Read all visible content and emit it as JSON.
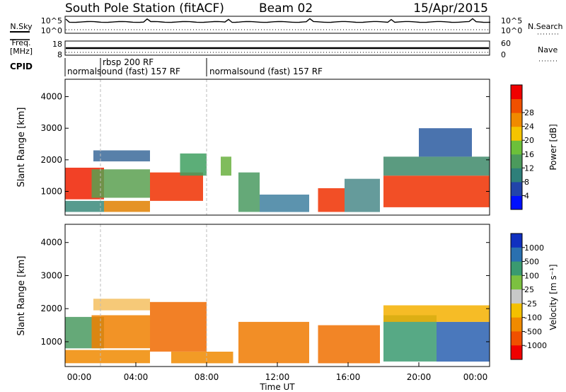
{
  "header": {
    "title": "South Pole Station (fitACF)",
    "beam": "Beam 02",
    "date": "15/Apr/2015"
  },
  "left_labels": {
    "nsky": "N.Sky",
    "freq_line1": "Freq.",
    "freq_line2": "[MHz]",
    "cpid": "CPID"
  },
  "right_labels": {
    "nsearch": "N.Search",
    "nave": "Nave"
  },
  "noise_panel": {
    "ytick_top": "10^5",
    "ytick_bottom": "10^0",
    "rtick_top": "10^5",
    "rtick_bottom": "10^0"
  },
  "freq_panel": {
    "ytick_top": "18",
    "ytick_bottom": "8",
    "rtick_top": "60",
    "rtick_bottom": "0"
  },
  "cpid_labels": [
    {
      "text": "rbsp 200 RF",
      "start_hour": 2.0
    },
    {
      "text": "normalsound (fast) 157 RF",
      "start_hour": 0.0
    },
    {
      "text": "normalsound (fast) 157 RF",
      "start_hour": 8.0
    }
  ],
  "chart_data": [
    {
      "type": "heatmap",
      "name": "power",
      "ylabel": "Slant Range [km]",
      "yticks": [
        "1000",
        "2000",
        "3000",
        "4000"
      ],
      "ylim": [
        250,
        4550
      ],
      "xlim": [
        0,
        24
      ],
      "colorbar": {
        "label": "Power [dB]",
        "ticks": [
          "4",
          "8",
          "12",
          "16",
          "20",
          "24",
          "28"
        ],
        "colors": [
          "#0010ff",
          "#2244aa",
          "#2e7f7a",
          "#4b9a5c",
          "#6cc03a",
          "#f5c400",
          "#f08a00",
          "#f05000",
          "#f00000"
        ]
      },
      "bands": [
        {
          "x0": 0.0,
          "x1": 2.2,
          "y0": 750,
          "y1": 1750,
          "color": "#f02000"
        },
        {
          "x0": 0.0,
          "x1": 2.2,
          "y0": 350,
          "y1": 700,
          "color": "#3a8a7a"
        },
        {
          "x0": 1.5,
          "x1": 4.8,
          "y0": 800,
          "y1": 1700,
          "color": "#5aa050"
        },
        {
          "x0": 1.6,
          "x1": 4.8,
          "y0": 1950,
          "y1": 2300,
          "color": "#3b6a9a"
        },
        {
          "x0": 2.2,
          "x1": 4.8,
          "y0": 350,
          "y1": 700,
          "color": "#e08000"
        },
        {
          "x0": 4.8,
          "x1": 7.8,
          "y0": 700,
          "y1": 1600,
          "color": "#f03000"
        },
        {
          "x0": 6.5,
          "x1": 8.0,
          "y0": 1500,
          "y1": 2200,
          "color": "#40a060"
        },
        {
          "x0": 8.8,
          "x1": 9.4,
          "y0": 1500,
          "y1": 2100,
          "color": "#6ab040"
        },
        {
          "x0": 9.8,
          "x1": 11.0,
          "y0": 350,
          "y1": 1600,
          "color": "#4a9a60"
        },
        {
          "x0": 11.0,
          "x1": 13.8,
          "y0": 350,
          "y1": 900,
          "color": "#3f80a0"
        },
        {
          "x0": 14.3,
          "x1": 15.8,
          "y0": 350,
          "y1": 1100,
          "color": "#f03000"
        },
        {
          "x0": 15.8,
          "x1": 17.8,
          "y0": 350,
          "y1": 1400,
          "color": "#4a8a8a"
        },
        {
          "x0": 18.0,
          "x1": 24.0,
          "y0": 500,
          "y1": 1500,
          "color": "#f03000"
        },
        {
          "x0": 18.0,
          "x1": 24.0,
          "y0": 1500,
          "y1": 2100,
          "color": "#3e8a6a"
        },
        {
          "x0": 20.0,
          "x1": 23.0,
          "y0": 2100,
          "y1": 3000,
          "color": "#2a5aa0"
        }
      ]
    },
    {
      "type": "heatmap",
      "name": "velocity",
      "ylabel": "Slant Range [km]",
      "yticks": [
        "1000",
        "2000",
        "3000",
        "4000"
      ],
      "ylim": [
        250,
        4550
      ],
      "xlim": [
        0,
        24
      ],
      "xticks": [
        "00:00",
        "04:00",
        "08:00",
        "12:00",
        "16:00",
        "20:00",
        "00:00"
      ],
      "xlabel": "Time UT",
      "colorbar": {
        "label": "Velocity [m s⁻¹]",
        "ticks": [
          "1000",
          "500",
          "100",
          "25",
          "-25",
          "-100",
          "-500",
          "-1000"
        ],
        "colors": [
          "#1030c0",
          "#2a70b0",
          "#3a9a70",
          "#7cc040",
          "#c8c8c8",
          "#f4c000",
          "#f08a00",
          "#f05000",
          "#f00000"
        ]
      },
      "bands": [
        {
          "x0": 0.0,
          "x1": 2.2,
          "y0": 800,
          "y1": 1750,
          "color": "#4a9a60"
        },
        {
          "x0": 0.0,
          "x1": 4.8,
          "y0": 350,
          "y1": 750,
          "color": "#f08a00"
        },
        {
          "x0": 1.5,
          "x1": 4.8,
          "y0": 800,
          "y1": 1800,
          "color": "#f08000"
        },
        {
          "x0": 1.6,
          "x1": 4.8,
          "y0": 1950,
          "y1": 2300,
          "color": "#f4c060"
        },
        {
          "x0": 4.8,
          "x1": 8.0,
          "y0": 700,
          "y1": 2200,
          "color": "#f06a00"
        },
        {
          "x0": 6.0,
          "x1": 9.5,
          "y0": 350,
          "y1": 700,
          "color": "#f08a00"
        },
        {
          "x0": 9.8,
          "x1": 13.8,
          "y0": 350,
          "y1": 1600,
          "color": "#f07a00"
        },
        {
          "x0": 14.3,
          "x1": 17.8,
          "y0": 350,
          "y1": 1500,
          "color": "#f07000"
        },
        {
          "x0": 18.0,
          "x1": 21.0,
          "y0": 400,
          "y1": 1800,
          "color": "#3a9a70"
        },
        {
          "x0": 21.0,
          "x1": 24.0,
          "y0": 400,
          "y1": 1600,
          "color": "#2a60b0"
        },
        {
          "x0": 18.0,
          "x1": 24.0,
          "y0": 1600,
          "y1": 2100,
          "color": "#f4b000"
        }
      ]
    }
  ]
}
